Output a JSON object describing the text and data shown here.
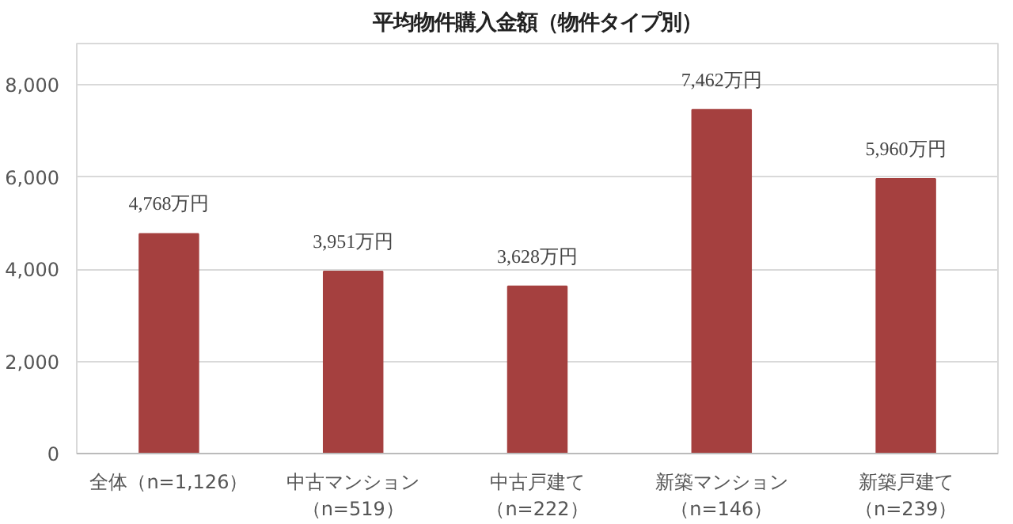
{
  "chart_data": {
    "type": "bar",
    "title": "平均物件購入金額（物件タイプ別）",
    "categories": [
      "全体（n=1,126）",
      "中古マンション（n=519）",
      "中古戸建て（n=222）",
      "新築マンション（n=146）",
      "新築戸建て（n=239）"
    ],
    "values": [
      4768,
      3951,
      3628,
      7462,
      5960
    ],
    "value_labels": [
      "4,768万円",
      "3,951万円",
      "3,628万円",
      "7,462万円",
      "5,960万円"
    ],
    "color": "#a5403f",
    "ylim": [
      0,
      8900
    ],
    "yticks": [
      {
        "value": 0,
        "label": "0"
      },
      {
        "value": 2000,
        "label": "2,000"
      },
      {
        "value": 4000,
        "label": "4,000"
      },
      {
        "value": 6000,
        "label": "6,000"
      },
      {
        "value": 8000,
        "label": "8,000"
      }
    ],
    "grid": "y"
  }
}
